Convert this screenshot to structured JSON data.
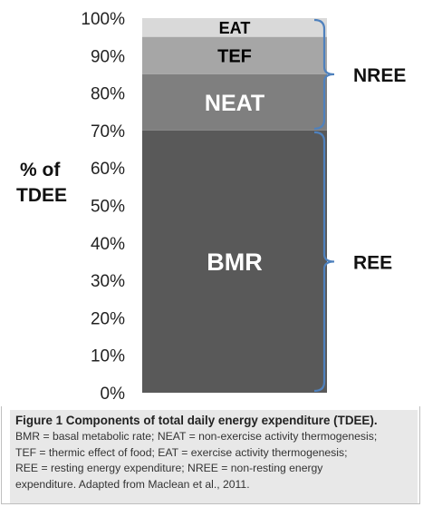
{
  "chart_data": {
    "type": "bar",
    "stacked": true,
    "ylabel_lines": [
      "% of",
      "TDEE"
    ],
    "ylim": [
      0,
      100
    ],
    "yticks": [
      "0%",
      "10%",
      "20%",
      "30%",
      "40%",
      "50%",
      "60%",
      "70%",
      "80%",
      "90%",
      "100%"
    ],
    "grid": false,
    "series": [
      {
        "name": "BMR",
        "value": 70,
        "color": "#595959",
        "label_color": "#ffffff"
      },
      {
        "name": "NEAT",
        "value": 15,
        "color": "#7f7f7f",
        "label_color": "#ffffff"
      },
      {
        "name": "TEF",
        "value": 10,
        "color": "#a6a6a6",
        "label_color": "#000000"
      },
      {
        "name": "EAT",
        "value": 5,
        "color": "#d9d9d9",
        "label_color": "#000000"
      }
    ],
    "brackets": [
      {
        "label": "NREE",
        "from": 70,
        "to": 100,
        "color": "#4f81bd"
      },
      {
        "label": "REE",
        "from": 0,
        "to": 70,
        "color": "#4f81bd"
      }
    ]
  },
  "caption": {
    "title": "Figure 1 Components of total daily energy expenditure (TDEE).",
    "lines": [
      "BMR = basal metabolic rate; NEAT = non-exercise activity thermogenesis;",
      "TEF = thermic effect of food; EAT = exercise activity thermogenesis;",
      "REE = resting energy expenditure; NREE = non-resting energy",
      "expenditure. Adapted from Maclean et al., 2011."
    ]
  }
}
